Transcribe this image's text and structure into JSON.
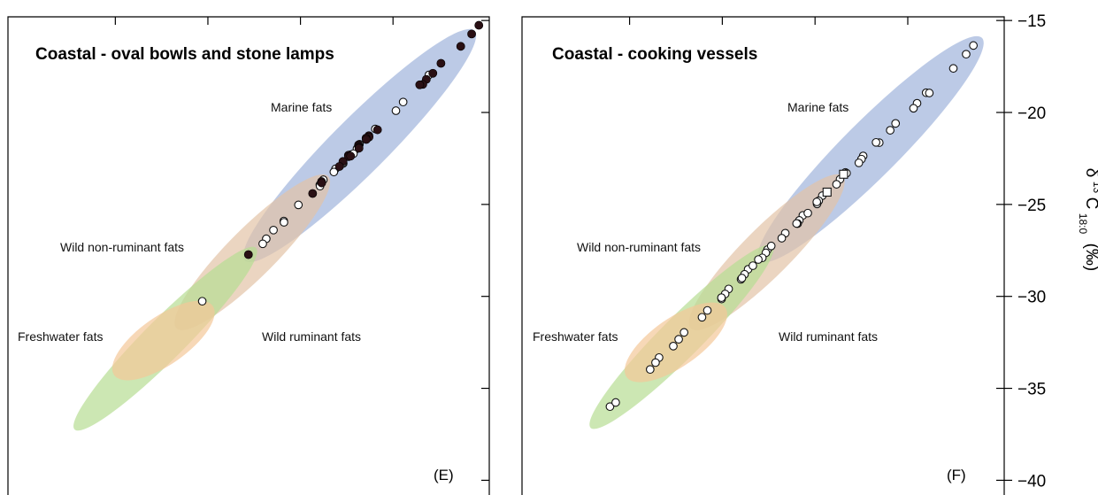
{
  "colors": {
    "marine": "#9fb3dc",
    "wild_non_ruminant": "#e2c3a6",
    "freshwater": "#b7dd93",
    "wild_ruminant": "#f4c898",
    "filled_point": "#2a1014",
    "open_point_stroke": "#111111"
  },
  "chart_data": [
    {
      "panel": "E",
      "type": "scatter",
      "title": "Coastal - oval bowls and stone lamps",
      "panel_letter": "(E)",
      "ylim": [
        -40.8,
        -14.8
      ],
      "xlim": [
        -40.8,
        -14.8
      ],
      "grid": false,
      "regions": [
        {
          "name": "Marine fats",
          "center": [
            -21.8,
            -21.8
          ],
          "semi_major": 6.2,
          "semi_minor": 1.5,
          "angle_deg": 45,
          "color": "#9fb3dc"
        },
        {
          "name": "Wild non-ruminant fats",
          "center": [
            -27.6,
            -27.6
          ],
          "semi_major": 4.1,
          "semi_minor": 1.3,
          "angle_deg": 45,
          "color": "#e2c3a6"
        },
        {
          "name": "Freshwater fats",
          "center": [
            -32.3,
            -32.3
          ],
          "semi_major": 4.9,
          "semi_minor": 1.1,
          "angle_deg": 45,
          "color": "#b7dd93"
        },
        {
          "name": "Wild ruminant fats",
          "center": [
            -32.4,
            -32.4
          ],
          "semi_major": 2.3,
          "semi_minor": 1.3,
          "angle_deg": 35,
          "color": "#f4c898"
        }
      ],
      "series": [
        {
          "marker": "filled-circle",
          "points": [
            [
              -15.1,
              -15.1
            ],
            [
              -15.7,
              -15.7
            ],
            [
              -16.5,
              -16.5
            ],
            [
              -17.2,
              -17.2
            ],
            [
              -18.2,
              -18.2
            ],
            [
              -18.6,
              -18.6
            ],
            [
              -18.4,
              -18.4
            ],
            [
              -17.9,
              -17.9
            ],
            [
              -21.1,
              -21.1
            ],
            [
              -21.2,
              -21.2
            ],
            [
              -21.4,
              -21.4
            ],
            [
              -21.6,
              -21.6
            ],
            [
              -21.8,
              -21.8
            ],
            [
              -22.0,
              -22.0
            ],
            [
              -22.2,
              -22.2
            ],
            [
              -22.4,
              -22.4
            ],
            [
              -22.5,
              -22.5
            ],
            [
              -21.3,
              -21.3
            ],
            [
              -21.5,
              -21.5
            ],
            [
              -22.1,
              -22.1
            ],
            [
              -22.6,
              -22.6
            ],
            [
              -23.0,
              -23.0
            ],
            [
              -23.6,
              -23.6
            ],
            [
              -23.8,
              -23.8
            ],
            [
              -24.5,
              -24.5
            ],
            [
              -27.6,
              -27.6
            ]
          ]
        },
        {
          "marker": "open-circle",
          "points": [
            [
              -17.8,
              -17.8
            ],
            [
              -19.4,
              -19.4
            ],
            [
              -20.0,
              -20.0
            ],
            [
              -21.6,
              -21.6
            ],
            [
              -22.3,
              -22.3
            ],
            [
              -22.9,
              -22.9
            ],
            [
              -20.8,
              -20.8
            ],
            [
              -22.0,
              -22.0
            ],
            [
              -22.4,
              -22.4
            ],
            [
              -23.0,
              -23.0
            ],
            [
              -23.3,
              -23.3
            ],
            [
              -23.5,
              -23.5
            ],
            [
              -23.9,
              -23.9
            ],
            [
              -24.1,
              -24.1
            ],
            [
              -24.9,
              -24.9
            ],
            [
              -25.9,
              -25.9
            ],
            [
              -26.1,
              -26.1
            ],
            [
              -26.3,
              -26.3
            ],
            [
              -26.9,
              -26.9
            ],
            [
              -27.3,
              -27.3
            ],
            [
              -30.2,
              -30.2
            ],
            [
              -22.8,
              -22.8
            ]
          ]
        }
      ]
    },
    {
      "panel": "F",
      "type": "scatter",
      "title": "Coastal - cooking vessels",
      "panel_letter": "(F)",
      "ylim": [
        -40.8,
        -14.8
      ],
      "xlim": [
        -40.8,
        -14.8
      ],
      "grid": false,
      "regions": [
        {
          "name": "Marine fats",
          "center": [
            -22.0,
            -22.0
          ],
          "semi_major": 6.0,
          "semi_minor": 1.5,
          "angle_deg": 45,
          "color": "#9fb3dc"
        },
        {
          "name": "Wild non-ruminant fats",
          "center": [
            -27.6,
            -27.6
          ],
          "semi_major": 4.1,
          "semi_minor": 1.3,
          "angle_deg": 45,
          "color": "#e2c3a6"
        },
        {
          "name": "Freshwater fats",
          "center": [
            -32.2,
            -32.2
          ],
          "semi_major": 4.9,
          "semi_minor": 1.1,
          "angle_deg": 45,
          "color": "#b7dd93"
        },
        {
          "name": "Wild ruminant fats",
          "center": [
            -32.5,
            -32.5
          ],
          "semi_major": 2.3,
          "semi_minor": 1.3,
          "angle_deg": 35,
          "color": "#f4c898"
        }
      ],
      "series": [
        {
          "marker": "open-circle",
          "points": [
            [
              -16.2,
              -16.2
            ],
            [
              -16.8,
              -16.8
            ],
            [
              -17.7,
              -17.7
            ],
            [
              -18.8,
              -18.8
            ],
            [
              -19.5,
              -19.5
            ],
            [
              -19.9,
              -19.9
            ],
            [
              -20.5,
              -20.5
            ],
            [
              -21.0,
              -21.0
            ],
            [
              -21.8,
              -21.8
            ],
            [
              -22.3,
              -22.3
            ],
            [
              -22.6,
              -22.6
            ],
            [
              -23.1,
              -23.1
            ],
            [
              -23.6,
              -23.6
            ],
            [
              -24.0,
              -24.0
            ],
            [
              -24.4,
              -24.4
            ],
            [
              -24.8,
              -24.8
            ],
            [
              -25.1,
              -25.1
            ],
            [
              -25.5,
              -25.5
            ],
            [
              -25.9,
              -25.9
            ],
            [
              -26.2,
              -26.2
            ],
            [
              -26.5,
              -26.5
            ],
            [
              -26.9,
              -26.9
            ],
            [
              -27.3,
              -27.3
            ],
            [
              -27.6,
              -27.6
            ],
            [
              -28.0,
              -28.0
            ],
            [
              -28.4,
              -28.4
            ],
            [
              -28.8,
              -28.8
            ],
            [
              -29.2,
              -29.2
            ],
            [
              -29.5,
              -29.5
            ],
            [
              -29.9,
              -29.9
            ],
            [
              -30.3,
              -30.3
            ],
            [
              -30.7,
              -30.7
            ],
            [
              -31.2,
              -31.2
            ],
            [
              -31.8,
              -31.8
            ],
            [
              -32.3,
              -32.3
            ],
            [
              -32.8,
              -32.8
            ],
            [
              -33.2,
              -33.2
            ],
            [
              -33.6,
              -33.6
            ],
            [
              -34.1,
              -34.1
            ],
            [
              -35.9,
              -35.9
            ],
            [
              -35.8,
              -35.8
            ],
            [
              -22.9,
              -22.9
            ],
            [
              -24.8,
              -24.8
            ],
            [
              -26.1,
              -26.1
            ],
            [
              -27.1,
              -27.1
            ],
            [
              -28.3,
              -28.3
            ],
            [
              -29.1,
              -29.1
            ],
            [
              -21.5,
              -21.5
            ],
            [
              -23.3,
              -23.3
            ],
            [
              -25.6,
              -25.6
            ],
            [
              -27.9,
              -27.9
            ],
            [
              -30.1,
              -30.1
            ],
            [
              -19.1,
              -19.1
            ]
          ]
        },
        {
          "marker": "open-square",
          "points": [
            [
              -23.2,
              -23.2
            ],
            [
              -24.3,
              -24.3
            ]
          ]
        }
      ]
    }
  ],
  "axis": {
    "tick_labels": [
      "−15",
      "−20",
      "−25",
      "−30",
      "−35",
      "−40"
    ],
    "title_main": "δ",
    "title_sup": "13",
    "title_c": "C",
    "title_sub": "18:0",
    "title_unit": "(‰)"
  }
}
